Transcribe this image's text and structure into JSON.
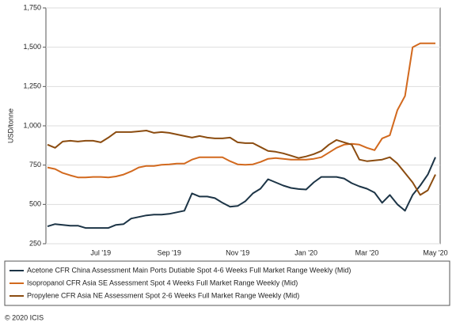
{
  "chart_data": {
    "type": "line",
    "y_label": "USD/tonne",
    "categories": [
      null,
      null,
      null,
      null,
      null,
      null,
      null,
      "Jul '19",
      null,
      null,
      null,
      null,
      null,
      null,
      null,
      null,
      "Sep '19",
      null,
      null,
      null,
      null,
      null,
      null,
      null,
      null,
      "Nov '19",
      null,
      null,
      null,
      null,
      null,
      null,
      null,
      null,
      "Jan '20",
      null,
      null,
      null,
      null,
      null,
      null,
      null,
      "Mar '20",
      null,
      null,
      null,
      null,
      null,
      null,
      null,
      null,
      "May '20"
    ],
    "series": [
      {
        "name": "Acetone CFR China Assessment Main Ports Dutiable Spot 4-6 Weeks Full Market Range Weekly (Mid)",
        "color": "#1c3446",
        "values": [
          360,
          375,
          370,
          365,
          365,
          350,
          350,
          350,
          350,
          370,
          375,
          410,
          420,
          430,
          435,
          435,
          440,
          450,
          460,
          570,
          550,
          550,
          540,
          510,
          485,
          490,
          520,
          570,
          600,
          660,
          640,
          620,
          605,
          598,
          595,
          640,
          675,
          675,
          675,
          665,
          635,
          615,
          600,
          575,
          510,
          560,
          500,
          460,
          560,
          620,
          690,
          800
        ]
      },
      {
        "name": "Isopropanol CFR Asia SE Assessment Spot 4 Weeks Full Market Range Weekly (Mid)",
        "color": "#d2691e",
        "values": [
          735,
          725,
          700,
          685,
          672,
          672,
          675,
          675,
          672,
          678,
          690,
          710,
          735,
          745,
          745,
          752,
          755,
          760,
          760,
          785,
          800,
          800,
          800,
          800,
          775,
          755,
          752,
          755,
          770,
          790,
          795,
          790,
          785,
          785,
          785,
          790,
          800,
          830,
          860,
          880,
          885,
          880,
          860,
          845,
          920,
          940,
          1100,
          1190,
          1500,
          1525,
          1525,
          1525
        ]
      },
      {
        "name": "Propylene CFR Asia NE Assessment Spot 2-6 Weeks Full Market Range Weekly (Mid)",
        "color": "#8b4c10",
        "values": [
          880,
          860,
          900,
          905,
          900,
          905,
          905,
          895,
          925,
          960,
          960,
          960,
          965,
          970,
          955,
          960,
          955,
          945,
          935,
          925,
          935,
          925,
          920,
          920,
          925,
          895,
          890,
          890,
          865,
          840,
          835,
          825,
          810,
          795,
          805,
          820,
          840,
          880,
          910,
          895,
          880,
          785,
          775,
          780,
          785,
          800,
          760,
          700,
          640,
          560,
          590,
          690
        ]
      }
    ],
    "ylim": [
      250,
      1750
    ],
    "yticks": [
      250,
      500,
      750,
      {
        "value": 1000,
        "label": "1,000"
      },
      {
        "value": 1250,
        "label": "1,250"
      },
      {
        "value": 1500,
        "label": "1,500"
      },
      {
        "value": 1750,
        "label": "1,750"
      }
    ],
    "grid": true,
    "legend": "bottom",
    "copyright": "© 2020 ICIS"
  }
}
